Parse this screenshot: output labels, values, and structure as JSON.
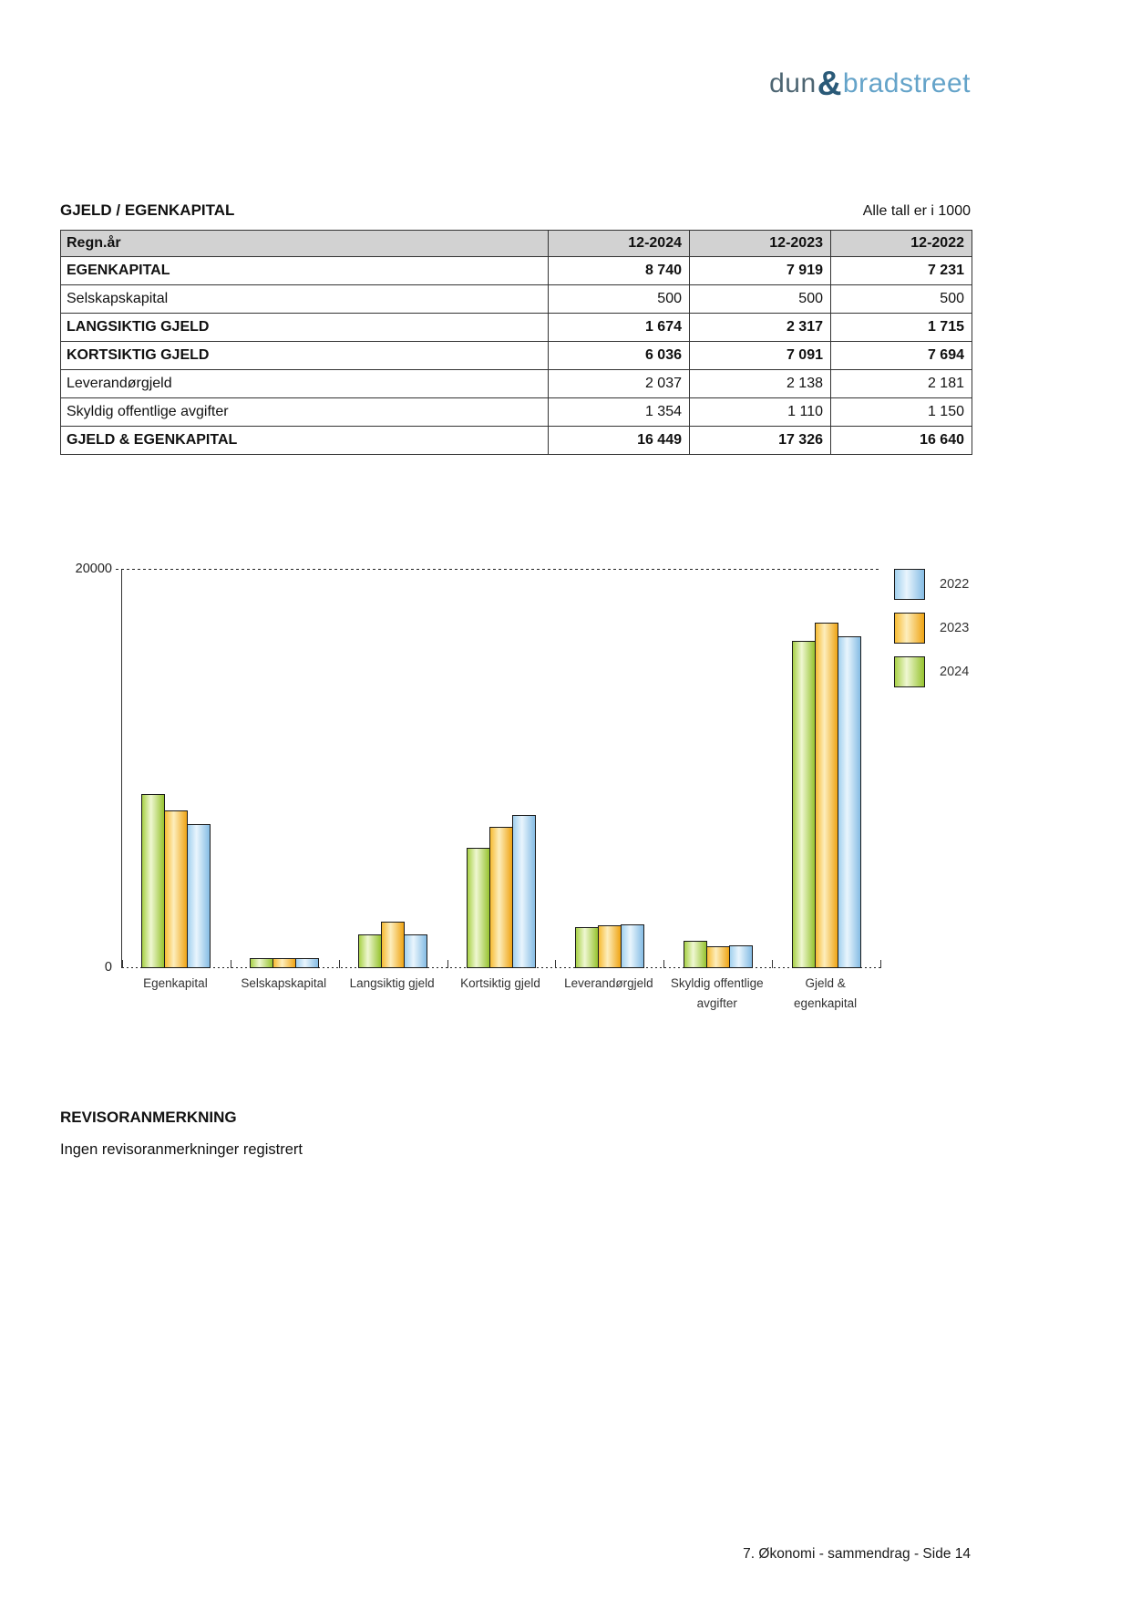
{
  "logo": {
    "dun": "dun",
    "amp": "&",
    "bradstreet": "bradstreet"
  },
  "section": {
    "title": "GJELD / EGENKAPITAL",
    "note": "Alle tall er i 1000"
  },
  "table": {
    "header": {
      "label": "Regn.år",
      "cols": [
        "12-2024",
        "12-2023",
        "12-2022"
      ]
    },
    "rows": [
      {
        "label": "EGENKAPITAL",
        "bold": true,
        "values": [
          "8 740",
          "7 919",
          "7 231"
        ]
      },
      {
        "label": "Selskapskapital",
        "bold": false,
        "values": [
          "500",
          "500",
          "500"
        ]
      },
      {
        "label": "LANGSIKTIG GJELD",
        "bold": true,
        "values": [
          "1 674",
          "2 317",
          "1 715"
        ]
      },
      {
        "label": "KORTSIKTIG GJELD",
        "bold": true,
        "values": [
          "6 036",
          "7 091",
          "7 694"
        ]
      },
      {
        "label": "Leverandørgjeld",
        "bold": false,
        "values": [
          "2 037",
          "2 138",
          "2 181"
        ]
      },
      {
        "label": "Skyldig offentlige avgifter",
        "bold": false,
        "values": [
          "1 354",
          "1 110",
          "1 150"
        ]
      },
      {
        "label": "GJELD & EGENKAPITAL",
        "bold": true,
        "values": [
          "16 449",
          "17 326",
          "16 640"
        ]
      }
    ]
  },
  "chart_data": {
    "type": "bar",
    "categories": [
      "Egenkapital",
      "Selskapskapital",
      "Langsiktig gjeld",
      "Kortsiktig gjeld",
      "Leverandørgjeld",
      "Skyldig offentlige\navgifter",
      "Gjeld &\negenkapital"
    ],
    "series": [
      {
        "name": "2024",
        "gradient": [
          "#a8d147",
          "#eff7d2",
          "#96c32f"
        ],
        "values": [
          8740,
          500,
          1674,
          6036,
          2037,
          1354,
          16449
        ]
      },
      {
        "name": "2023",
        "gradient": [
          "#f7bb33",
          "#fdeebd",
          "#efa414"
        ],
        "values": [
          7919,
          500,
          2317,
          7091,
          2138,
          1110,
          17326
        ]
      },
      {
        "name": "2022",
        "gradient": [
          "#a2d0ee",
          "#e9f5fd",
          "#85bce4"
        ],
        "values": [
          7231,
          500,
          1715,
          7694,
          2181,
          1150,
          16640
        ]
      }
    ],
    "legend_order": [
      "2022",
      "2023",
      "2024"
    ],
    "legend_position": "right",
    "title": "",
    "xlabel": "",
    "ylabel": "",
    "ylim": [
      0,
      20000
    ],
    "ytick_top": "20000",
    "ytick_bottom": "0",
    "grid": "dashed line at 20000 only"
  },
  "revisor": {
    "heading": "REVISORANMERKNING",
    "body": "Ingen revisoranmerkninger registrert"
  },
  "footer": {
    "text": "7. Økonomi - sammendrag - Side 14"
  }
}
